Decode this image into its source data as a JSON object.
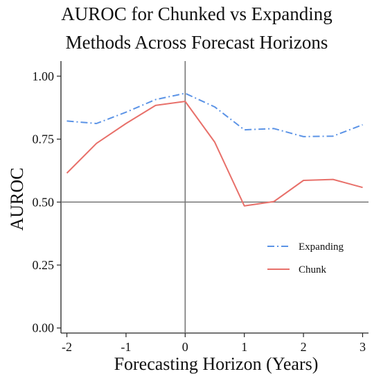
{
  "chart_data": {
    "type": "line",
    "title": [
      "AUROC for Chunked vs Expanding",
      "Methods Across Forecast Horizons"
    ],
    "xlabel": "Forecasting Horizon (Years)",
    "ylabel": "AUROC",
    "x": [
      -2,
      -1.5,
      -1,
      -0.5,
      0,
      0.5,
      1,
      1.5,
      2,
      2.5,
      3
    ],
    "xlim": [
      -2.1,
      3.1
    ],
    "ylim": [
      -0.02,
      1.06
    ],
    "xticks": [
      -2,
      -1,
      0,
      1,
      2,
      3
    ],
    "xtick_labels": [
      "-2",
      "-1",
      "0",
      "1",
      "2",
      "3"
    ],
    "yticks": [
      0,
      0.25,
      0.5,
      0.75,
      1.0
    ],
    "ytick_labels": [
      "0.00",
      "0.25",
      "0.50",
      "0.75",
      "1.00"
    ],
    "reference_lines": {
      "x": 0,
      "y": 0.5
    },
    "grid": false,
    "legend_position": "right, lower-middle",
    "series": [
      {
        "name": "Expanding",
        "color": "#5b93e6",
        "style": "dashdot",
        "values": [
          0.822,
          0.812,
          0.857,
          0.907,
          0.932,
          0.878,
          0.787,
          0.792,
          0.76,
          0.762,
          0.807
        ]
      },
      {
        "name": "Chunk",
        "color": "#e8706a",
        "style": "solid",
        "values": [
          0.615,
          0.733,
          0.812,
          0.884,
          0.9,
          0.738,
          0.485,
          0.502,
          0.586,
          0.59,
          0.558
        ]
      }
    ]
  }
}
